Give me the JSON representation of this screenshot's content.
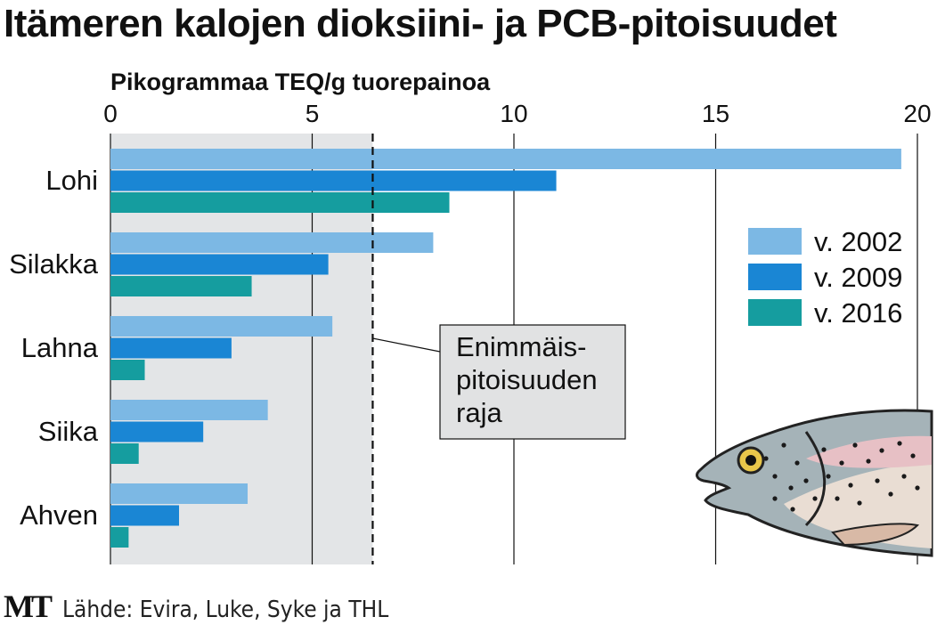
{
  "title": "Itämeren kalojen dioksiini- ja PCB-pitoisuudet",
  "footer": {
    "logo": "MT",
    "source": "Lähde: Evira, Luke, Syke ja THL"
  },
  "colors": {
    "v2002": "#7cb8e4",
    "v2009": "#1a86d4",
    "v2016": "#159d9f",
    "limit_region": "#e3e5e7",
    "callout_bg": "#e1e2e3"
  },
  "chart_data": {
    "type": "bar",
    "orientation": "horizontal",
    "title": "Itämeren kalojen dioksiini- ja PCB-pitoisuudet",
    "xlabel": "Pikogrammaa TEQ/g tuorepainoa",
    "ylabel": "",
    "xlim": [
      0,
      20
    ],
    "xticks": [
      0,
      5,
      10,
      15,
      20
    ],
    "grid": true,
    "legend_position": "right",
    "categories": [
      "Lohi",
      "Silakka",
      "Lahna",
      "Siika",
      "Ahven"
    ],
    "series": [
      {
        "name": "v. 2002",
        "color": "#7cb8e4",
        "values": [
          19.6,
          8.0,
          5.5,
          3.9,
          3.4
        ]
      },
      {
        "name": "v. 2009",
        "color": "#1a86d4",
        "values": [
          11.05,
          5.4,
          3.0,
          2.3,
          1.7
        ]
      },
      {
        "name": "v. 2016",
        "color": "#159d9f",
        "values": [
          8.4,
          3.5,
          0.85,
          0.7,
          0.45
        ]
      }
    ],
    "reference_line": {
      "value": 6.5,
      "label": "Enimmäis-\npitoisuuden\nraja",
      "label_lines": [
        "Enimmäis-",
        "pitoisuuden",
        "raja"
      ]
    }
  }
}
